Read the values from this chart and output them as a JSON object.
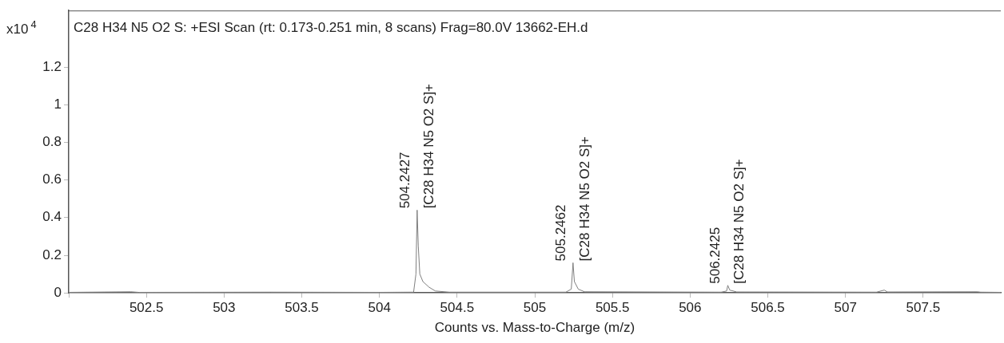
{
  "chart_data": {
    "type": "line",
    "title": "C28 H34 N5 O2 S: +ESI Scan (rt: 0.173-0.251 min, 8 scans) Frag=80.0V 13662-EH.d",
    "xlabel": "Counts vs. Mass-to-Charge (m/z)",
    "ylabel": "x10$^{4}$",
    "x": [
      502.0,
      502.4,
      502.45,
      503.3,
      504.0,
      504.22,
      504.235,
      504.2427,
      504.25,
      504.26,
      504.28,
      504.32,
      504.36,
      504.45,
      505.2,
      505.235,
      505.2462,
      505.255,
      505.28,
      505.32,
      506.2,
      506.235,
      506.2425,
      506.255,
      506.3,
      507.2,
      507.25,
      507.27,
      507.85,
      507.87,
      508.0
    ],
    "series": [
      {
        "color": "#7f7f7f",
        "values": [
          0.003,
          0.006,
          0.003,
          0.004,
          0.003,
          0.004,
          0.1,
          0.44,
          0.25,
          0.1,
          0.06,
          0.03,
          0.01,
          0.004,
          0.004,
          0.02,
          0.16,
          0.06,
          0.02,
          0.006,
          0.004,
          0.01,
          0.04,
          0.015,
          0.005,
          0.004,
          0.015,
          0.005,
          0.006,
          0.004,
          0.003
        ]
      }
    ],
    "xlim": [
      502,
      508
    ],
    "xticks": [
      {
        "value": 502,
        "label": null
      },
      502.5,
      503,
      503.5,
      504,
      504.5,
      505,
      505.5,
      506,
      506.5,
      507,
      507.5
    ],
    "ylim": [
      0,
      1.5
    ],
    "yticks": [
      0,
      0.2,
      0.4,
      0.6,
      0.8,
      1,
      1.2
    ],
    "annotations": [
      {
        "text": "504.2427",
        "x": 504.2427,
        "y": 0.44
      },
      {
        "text": "[C28 H34 N5 O2 S]+",
        "x": 504.2427,
        "y": 0.44
      },
      {
        "text": "505.2462",
        "x": 505.2462,
        "y": 0.16
      },
      {
        "text": "[C28 H34 N5 O2 S]+",
        "x": 505.2462,
        "y": 0.16
      },
      {
        "text": "506.2425",
        "x": 506.2425,
        "y": 0.04
      },
      {
        "text": "[C28 H34 N5 O2 S]+",
        "x": 506.2425,
        "y": 0.04
      }
    ],
    "grid": false,
    "legend": false,
    "marker": "none",
    "line_style": "solid"
  }
}
